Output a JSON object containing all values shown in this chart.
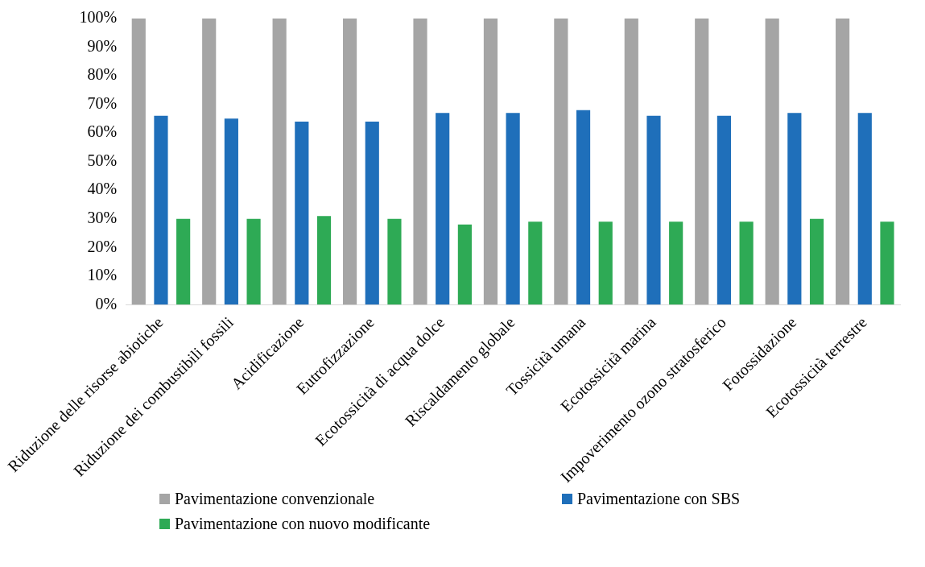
{
  "chart_data": {
    "type": "bar",
    "categories": [
      "Riduzione delle risorse abiotiche",
      "Riduzione dei combustibili fossili",
      "Acidificazione",
      "Eutrofizzazione",
      "Ecotossicità di acqua dolce",
      "Riscaldamento globale",
      "Tossicità umana",
      "Ecotossicità marina",
      "Impoverimento ozono stratosferico",
      "Fotossidazione",
      "Ecotossicità terrestre"
    ],
    "series": [
      {
        "name": "Pavimentazione convenzionale",
        "color": "#a5a5a5",
        "values": [
          100,
          100,
          100,
          100,
          100,
          100,
          100,
          100,
          100,
          100,
          100
        ]
      },
      {
        "name": "Pavimentazione con SBS",
        "color": "#1f6fba",
        "values": [
          66,
          65,
          64,
          64,
          67,
          67,
          68,
          66,
          66,
          67,
          67
        ]
      },
      {
        "name": "Pavimentazione con nuovo modificante",
        "color": "#2eaa55",
        "values": [
          30,
          30,
          31,
          30,
          28,
          29,
          29,
          29,
          29,
          30,
          29
        ]
      }
    ],
    "ylim": [
      0,
      100
    ],
    "yticks": [
      {
        "value": 0,
        "label": "0%"
      },
      {
        "value": 10,
        "label": "10%"
      },
      {
        "value": 20,
        "label": "20%"
      },
      {
        "value": 30,
        "label": "30%"
      },
      {
        "value": 40,
        "label": "40%"
      },
      {
        "value": 50,
        "label": "50%"
      },
      {
        "value": 60,
        "label": "60%"
      },
      {
        "value": 70,
        "label": "70%"
      },
      {
        "value": 80,
        "label": "80%"
      },
      {
        "value": 90,
        "label": "90%"
      },
      {
        "value": 100,
        "label": "100%"
      }
    ],
    "grid": false,
    "legend": "bottom"
  }
}
